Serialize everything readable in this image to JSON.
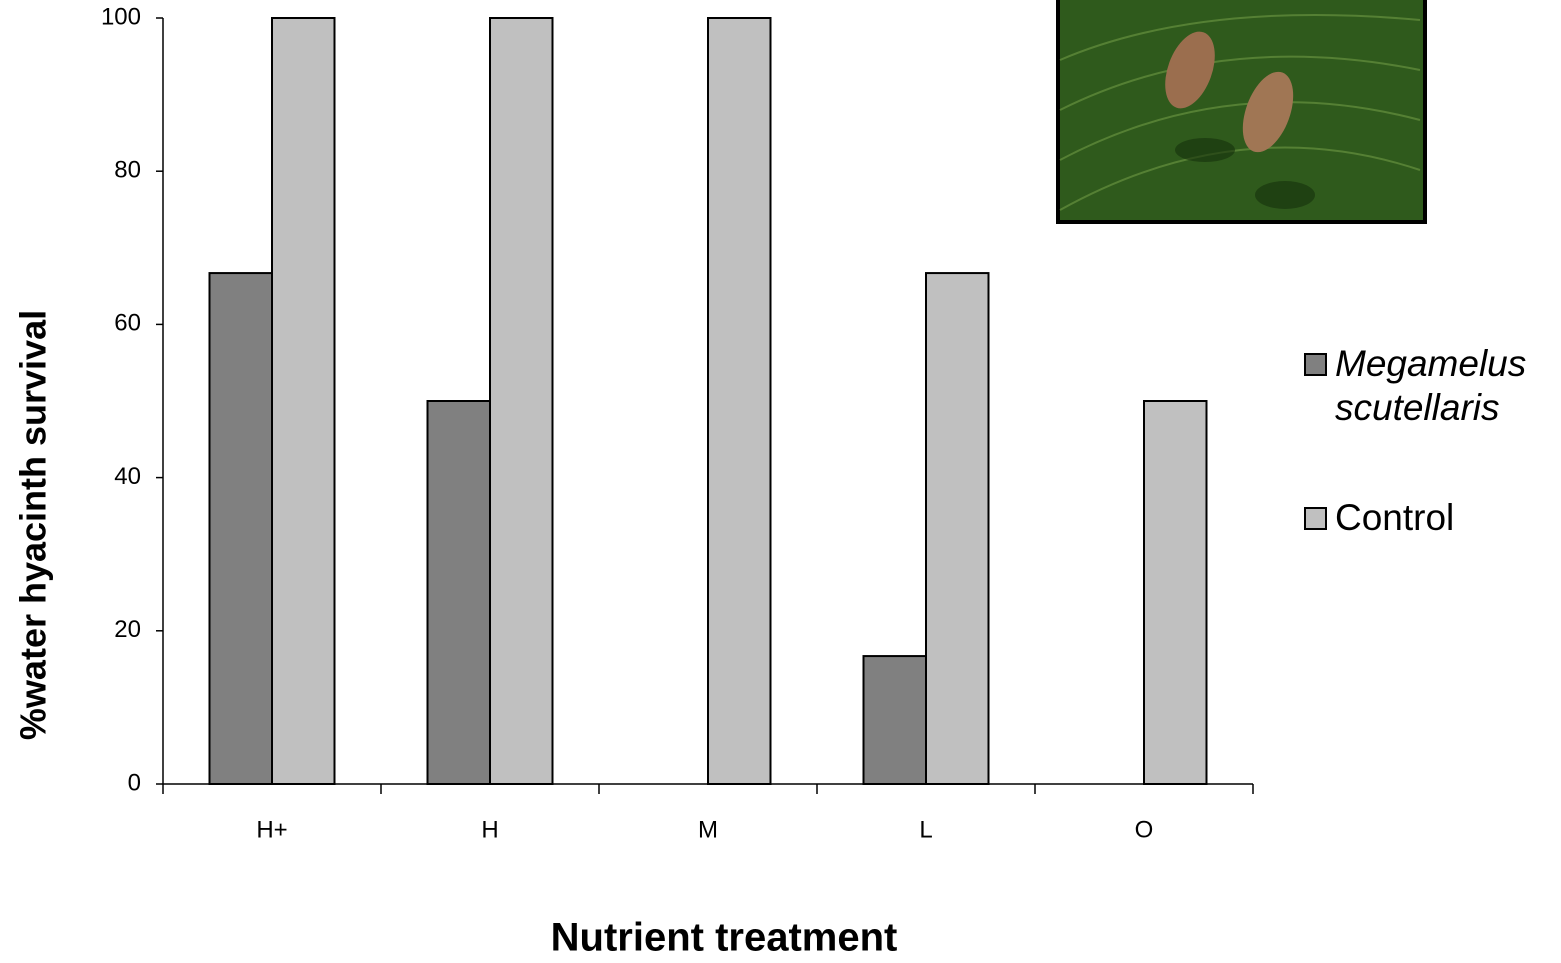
{
  "chart_data": {
    "type": "bar",
    "x_label": "Nutrient treatment",
    "y_label": "%water hyacinth survival",
    "categories": [
      "H+",
      "H",
      "M",
      "L",
      "O"
    ],
    "series": [
      {
        "name": "Megamelus scutellaris",
        "color": "#808080",
        "values": [
          66.7,
          50,
          0,
          16.7,
          0
        ]
      },
      {
        "name": "Control",
        "color": "#c0c0c0",
        "values": [
          100,
          100,
          100,
          66.7,
          50
        ]
      }
    ],
    "ylim": [
      0,
      100
    ],
    "yticks": [
      0,
      20,
      40,
      60,
      80,
      100
    ],
    "legend": "right",
    "grid": false
  }
}
